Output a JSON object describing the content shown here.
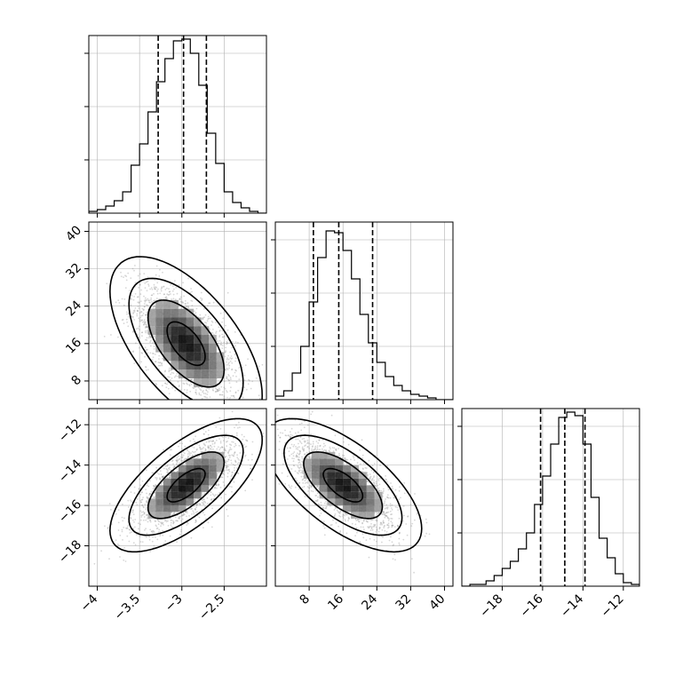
{
  "figure": {
    "type": "corner-plot",
    "grid": true,
    "title": ""
  },
  "colors": {
    "hist_line": "#000000",
    "scatter": "#8c8c8c",
    "quantile_line": "#000000",
    "grid": "#b0b0b0"
  },
  "chart_data": [
    {
      "type": "bar",
      "panel": "hist-param-1",
      "bin_edges": [
        -4.1,
        -4.0,
        -3.9,
        -3.8,
        -3.7,
        -3.6,
        -3.5,
        -3.4,
        -3.3,
        -3.2,
        -3.1,
        -3.0,
        -2.9,
        -2.8,
        -2.7,
        -2.6,
        -2.5,
        -2.4,
        -2.3,
        -2.2,
        -2.1,
        -2.0
      ],
      "values": [
        1,
        2,
        4,
        7,
        12,
        27,
        39,
        57,
        74,
        87,
        97,
        98,
        90,
        72,
        45,
        28,
        12,
        6,
        3,
        1,
        0
      ],
      "quantiles": [
        -3.28,
        -2.98,
        -2.71
      ],
      "xlim": [
        -4.1,
        -2.0
      ],
      "ylim": [
        0,
        100
      ],
      "yticks": [
        30,
        60,
        90
      ],
      "xticks": []
    },
    {
      "type": "bar",
      "panel": "hist-param-2",
      "bin_edges": [
        0,
        2,
        4,
        6,
        8,
        10,
        12,
        14,
        16,
        18,
        20,
        22,
        24,
        26,
        28,
        30,
        32,
        34,
        36,
        38,
        40,
        42
      ],
      "values": [
        2,
        5,
        15,
        30,
        55,
        80,
        95,
        94,
        84,
        68,
        48,
        32,
        21,
        13,
        8,
        5,
        3,
        2,
        1,
        0,
        0
      ],
      "quantiles": [
        9,
        15,
        23
      ],
      "xlim": [
        0,
        42
      ],
      "ylim": [
        0,
        100
      ],
      "yticks": [
        30,
        60,
        90
      ],
      "xticks": []
    },
    {
      "type": "bar",
      "panel": "hist-param-3",
      "bin_edges": [
        -20.0,
        -19.6,
        -19.2,
        -18.8,
        -18.4,
        -18.0,
        -17.6,
        -17.2,
        -16.8,
        -16.4,
        -16.0,
        -15.6,
        -15.2,
        -14.8,
        -14.4,
        -14.0,
        -13.6,
        -13.2,
        -12.8,
        -12.4,
        -12.0,
        -11.6,
        -11.2
      ],
      "values": [
        0,
        1,
        1,
        3,
        6,
        10,
        14,
        21,
        30,
        46,
        62,
        80,
        95,
        98,
        96,
        80,
        50,
        27,
        16,
        7,
        2,
        1
      ],
      "quantiles": [
        -16.1,
        -14.9,
        -13.9
      ],
      "xlim": [
        -20.0,
        -11.2
      ],
      "ylim": [
        0,
        100
      ],
      "yticks": [
        30,
        60,
        90
      ],
      "xticks": [
        -18,
        -16,
        -14,
        -12
      ]
    },
    {
      "type": "scatter",
      "panel": "param-1-vs-param-2",
      "mean": [
        -2.95,
        16
      ],
      "std": [
        0.3,
        6.2
      ],
      "corr": -0.6,
      "contour_levels_sigma": [
        0.5,
        1.0,
        1.5,
        2.0
      ],
      "xlim": [
        -4.1,
        -2.0
      ],
      "ylim": [
        4,
        42
      ],
      "xticks": [],
      "yticks": [
        8,
        16,
        24,
        32,
        40
      ]
    },
    {
      "type": "scatter",
      "panel": "param-1-vs-param-3",
      "mean": [
        -2.95,
        -15
      ],
      "std": [
        0.3,
        1.1
      ],
      "corr": 0.68,
      "contour_levels_sigma": [
        0.5,
        1.0,
        1.5,
        2.0
      ],
      "xlim": [
        -4.1,
        -2.0
      ],
      "ylim": [
        -20.0,
        -11.2
      ],
      "xticks": [
        -4.0,
        -3.5,
        -3.0,
        -2.5
      ],
      "yticks": [
        -18,
        -16,
        -14,
        -12
      ]
    },
    {
      "type": "scatter",
      "panel": "param-2-vs-param-3",
      "mean": [
        16,
        -15
      ],
      "std": [
        6.2,
        1.1
      ],
      "corr": -0.65,
      "contour_levels_sigma": [
        0.5,
        1.0,
        1.5,
        2.0
      ],
      "xlim": [
        0,
        42
      ],
      "ylim": [
        -20.0,
        -11.2
      ],
      "xticks": [
        8,
        16,
        24,
        32,
        40
      ],
      "yticks": []
    }
  ]
}
